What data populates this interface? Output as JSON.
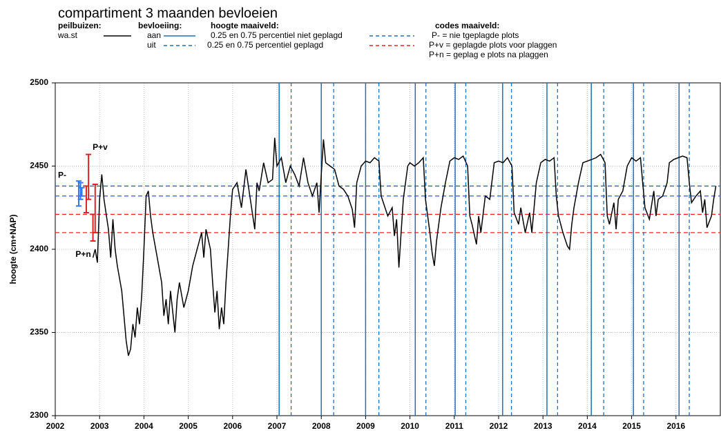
{
  "chart_data": {
    "type": "line",
    "title": "compartiment 3 maanden bevloeien",
    "legend": {
      "peilbuizen_header": "peilbuizen:",
      "bevloeiing_header": "bevloeiing:",
      "bevloeiing_on": "aan",
      "bevloeiing_off": "uit",
      "maaiveld_header": "hoogte maaiveld:",
      "maaiveld_ungrazed": "0.25 en 0.75 percentiel niet geplagd",
      "maaiveld_grazed": "0.25 en 0.75 percentiel geplagd",
      "codes_header": "codes maaiveld:",
      "code_p_minus": "P- = nie tgeplagde plots",
      "code_p_plus_v": "P+v = geplagde plots voor plaggen",
      "code_p_plus_n": "P+n = geplag e plots na plaggen"
    },
    "y_label": "hoogte (cm+NAP)",
    "xlim": [
      2002,
      2017
    ],
    "xticks": [
      2002,
      2003,
      2004,
      2005,
      2006,
      2007,
      2008,
      2009,
      2010,
      2011,
      2012,
      2013,
      2014,
      2015,
      2016
    ],
    "ylim": [
      2300,
      2500
    ],
    "yticks": [
      2300,
      2350,
      2400,
      2450,
      2500
    ],
    "grid": true,
    "series": [
      {
        "name": "wa.st",
        "color": "#000000",
        "x": [
          2002.85,
          2002.9,
          2002.95,
          2003.0,
          2003.05,
          2003.1,
          2003.2,
          2003.25,
          2003.3,
          2003.35,
          2003.4,
          2003.5,
          2003.55,
          2003.6,
          2003.65,
          2003.7,
          2003.75,
          2003.8,
          2003.85,
          2003.9,
          2003.95,
          2004.0,
          2004.05,
          2004.1,
          2004.15,
          2004.2,
          2004.3,
          2004.4,
          2004.45,
          2004.5,
          2004.55,
          2004.6,
          2004.7,
          2004.75,
          2004.8,
          2004.9,
          2005.0,
          2005.1,
          2005.2,
          2005.3,
          2005.35,
          2005.4,
          2005.5,
          2005.55,
          2005.6,
          2005.65,
          2005.7,
          2005.75,
          2005.8,
          2005.85,
          2005.9,
          2005.95,
          2006.0,
          2006.1,
          2006.2,
          2006.3,
          2006.4,
          2006.5,
          2006.55,
          2006.6,
          2006.7,
          2006.8,
          2006.9,
          2006.95,
          2007.0,
          2007.1,
          2007.2,
          2007.3,
          2007.4,
          2007.5,
          2007.6,
          2007.7,
          2007.8,
          2007.9,
          2007.95,
          2008.0,
          2008.05,
          2008.1,
          2008.2,
          2008.3,
          2008.4,
          2008.5,
          2008.6,
          2008.7,
          2008.75,
          2008.8,
          2008.9,
          2009.0,
          2009.1,
          2009.2,
          2009.3,
          2009.35,
          2009.4,
          2009.5,
          2009.6,
          2009.65,
          2009.7,
          2009.75,
          2009.8,
          2009.85,
          2009.95,
          2010.0,
          2010.1,
          2010.2,
          2010.3,
          2010.35,
          2010.4,
          2010.45,
          2010.5,
          2010.55,
          2010.6,
          2010.7,
          2010.8,
          2010.9,
          2011.0,
          2011.1,
          2011.2,
          2011.3,
          2011.35,
          2011.4,
          2011.5,
          2011.55,
          2011.6,
          2011.7,
          2011.8,
          2011.9,
          2012.0,
          2012.1,
          2012.2,
          2012.3,
          2012.35,
          2012.45,
          2012.5,
          2012.6,
          2012.7,
          2012.75,
          2012.85,
          2012.95,
          2013.05,
          2013.15,
          2013.25,
          2013.3,
          2013.35,
          2013.45,
          2013.55,
          2013.6,
          2013.65,
          2013.7,
          2013.8,
          2013.9,
          2014.0,
          2014.1,
          2014.2,
          2014.3,
          2014.4,
          2014.45,
          2014.5,
          2014.6,
          2014.65,
          2014.7,
          2014.8,
          2014.9,
          2015.0,
          2015.1,
          2015.2,
          2015.25,
          2015.3,
          2015.4,
          2015.5,
          2015.55,
          2015.6,
          2015.7,
          2015.8,
          2015.85,
          2015.95,
          2016.05,
          2016.15,
          2016.25,
          2016.3,
          2016.35,
          2016.45,
          2016.55,
          2016.6,
          2016.65,
          2016.7,
          2016.8,
          2016.85,
          2016.9
        ],
        "values": [
          2395,
          2400,
          2392,
          2430,
          2445,
          2430,
          2412,
          2395,
          2418,
          2400,
          2390,
          2375,
          2360,
          2345,
          2336,
          2340,
          2355,
          2347,
          2365,
          2355,
          2372,
          2400,
          2432,
          2435,
          2420,
          2410,
          2395,
          2380,
          2360,
          2370,
          2355,
          2375,
          2350,
          2370,
          2380,
          2365,
          2375,
          2390,
          2400,
          2410,
          2395,
          2412,
          2400,
          2380,
          2362,
          2375,
          2352,
          2365,
          2355,
          2380,
          2400,
          2420,
          2436,
          2440,
          2425,
          2448,
          2430,
          2412,
          2440,
          2435,
          2452,
          2440,
          2442,
          2467,
          2450,
          2455,
          2440,
          2450,
          2445,
          2438,
          2455,
          2440,
          2432,
          2440,
          2422,
          2445,
          2466,
          2452,
          2450,
          2448,
          2438,
          2436,
          2432,
          2424,
          2413,
          2440,
          2450,
          2453,
          2452,
          2455,
          2453,
          2432,
          2428,
          2420,
          2425,
          2408,
          2418,
          2389,
          2410,
          2430,
          2450,
          2452,
          2450,
          2452,
          2455,
          2430,
          2420,
          2410,
          2398,
          2390,
          2405,
          2425,
          2440,
          2453,
          2455,
          2454,
          2456,
          2450,
          2420,
          2415,
          2403,
          2420,
          2410,
          2432,
          2430,
          2452,
          2453,
          2452,
          2455,
          2450,
          2422,
          2415,
          2425,
          2410,
          2422,
          2410,
          2440,
          2452,
          2454,
          2453,
          2455,
          2432,
          2420,
          2410,
          2402,
          2400,
          2415,
          2425,
          2440,
          2452,
          2453,
          2454,
          2455,
          2457,
          2452,
          2420,
          2415,
          2428,
          2412,
          2430,
          2435,
          2450,
          2455,
          2453,
          2455,
          2440,
          2425,
          2418,
          2435,
          2420,
          2430,
          2432,
          2440,
          2452,
          2454,
          2455,
          2456,
          2455,
          2440,
          2428,
          2432,
          2435,
          2422,
          2430,
          2413,
          2420,
          2430,
          2438
        ]
      }
    ],
    "bevloeiing_color": "#1f6fb4",
    "bevloeiing_on_x": [
      2007.05,
      2008.0,
      2009.0,
      2010.12,
      2011.02,
      2012.09,
      2013.09,
      2014.09,
      2015.04,
      2016.07
    ],
    "bevloeiing_off_x": [
      2007.32,
      2008.28,
      2009.3,
      2010.36,
      2011.26,
      2012.29,
      2013.33,
      2014.37,
      2015.27,
      2016.3
    ],
    "maaiveld_lines": [
      {
        "value": 2438,
        "color": "#3355dd"
      },
      {
        "value": 2432,
        "color": "#3355dd"
      },
      {
        "value": 2421,
        "color": "#ee2222"
      },
      {
        "value": 2410,
        "color": "#ee2222"
      }
    ],
    "intervals": [
      {
        "name": "P-",
        "color": "#3377ee",
        "x": [
          2002.53,
          2002.57,
          2002.6
        ],
        "low": [
          2426,
          2430,
          2432
        ],
        "high": [
          2441,
          2440,
          2437
        ]
      },
      {
        "name": "P+v",
        "color": "#dd2222",
        "x": [
          2002.7,
          2002.75
        ],
        "low": [
          2422,
          2430
        ],
        "high": [
          2438,
          2457
        ]
      },
      {
        "name": "P+n",
        "color": "#dd2222",
        "x": [
          2002.85,
          2002.9
        ],
        "low": [
          2405,
          2410
        ],
        "high": [
          2421,
          2439
        ]
      }
    ]
  }
}
